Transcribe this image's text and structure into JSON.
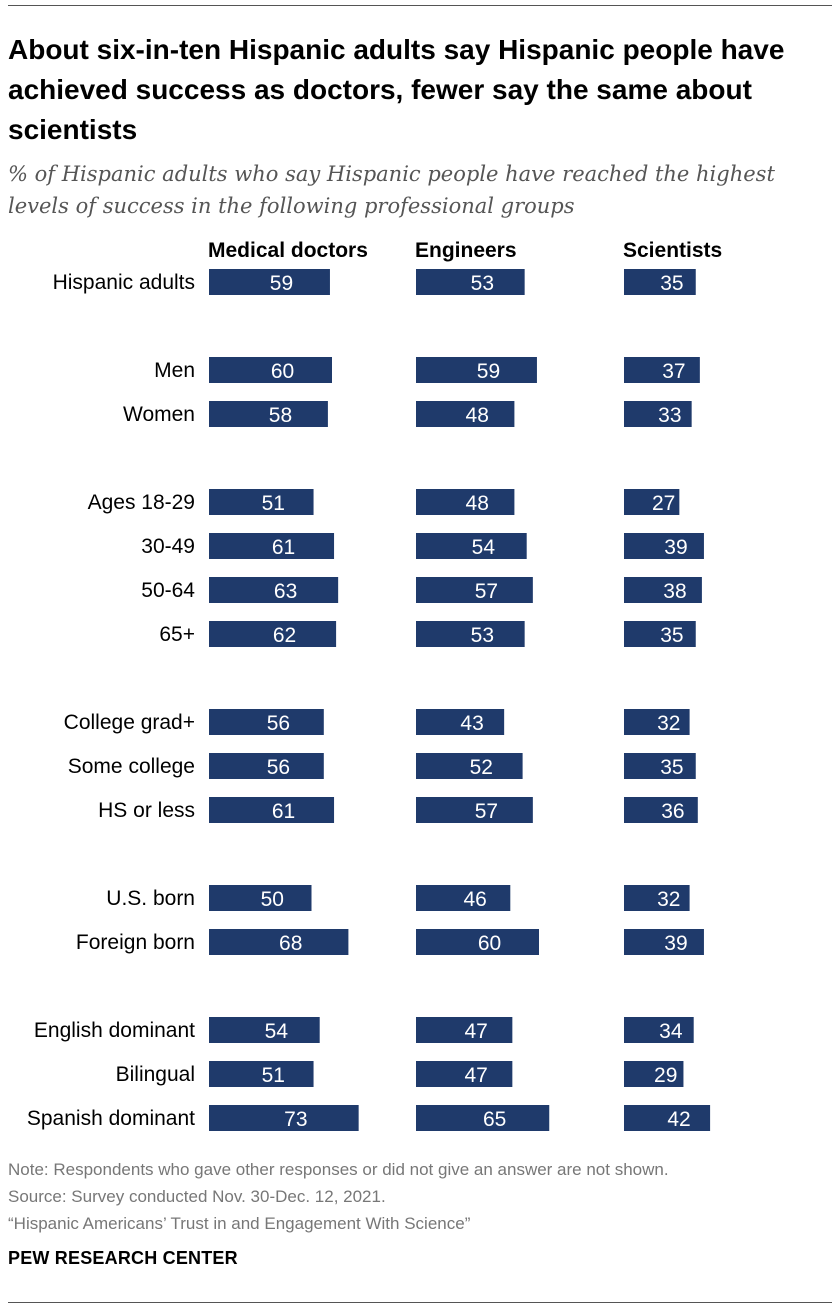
{
  "title": "About six-in-ten Hispanic adults say Hispanic people have achieved success as doctors, fewer say the same about scientists",
  "subtitle": "% of Hispanic adults who say Hispanic people have reached the highest levels of success in the following professional groups",
  "chart_data": {
    "type": "bar",
    "orientation": "horizontal",
    "columns": [
      "Medical doctors",
      "Engineers",
      "Scientists"
    ],
    "groups": [
      {
        "rows": [
          {
            "label": "Hispanic adults",
            "values": [
              59,
              53,
              35
            ]
          }
        ]
      },
      {
        "rows": [
          {
            "label": "Men",
            "values": [
              60,
              59,
              37
            ]
          },
          {
            "label": "Women",
            "values": [
              58,
              48,
              33
            ]
          }
        ]
      },
      {
        "rows": [
          {
            "label": "Ages 18-29",
            "values": [
              51,
              48,
              27
            ]
          },
          {
            "label": "30-49",
            "values": [
              61,
              54,
              39
            ]
          },
          {
            "label": "50-64",
            "values": [
              63,
              57,
              38
            ]
          },
          {
            "label": "65+",
            "values": [
              62,
              53,
              35
            ]
          }
        ]
      },
      {
        "rows": [
          {
            "label": "College grad+",
            "values": [
              56,
              43,
              32
            ]
          },
          {
            "label": "Some college",
            "values": [
              56,
              52,
              35
            ]
          },
          {
            "label": "HS or less",
            "values": [
              61,
              57,
              36
            ]
          }
        ]
      },
      {
        "rows": [
          {
            "label": "U.S. born",
            "values": [
              50,
              46,
              32
            ]
          },
          {
            "label": "Foreign born",
            "values": [
              68,
              60,
              39
            ]
          }
        ]
      },
      {
        "rows": [
          {
            "label": "English dominant",
            "values": [
              54,
              47,
              34
            ]
          },
          {
            "label": "Bilingual",
            "values": [
              51,
              47,
              29
            ]
          },
          {
            "label": "Spanish dominant",
            "values": [
              73,
              65,
              42
            ]
          }
        ]
      }
    ],
    "bar_color": "#1f3a6b",
    "value_label_color": "#ffffff"
  },
  "notes": {
    "note": "Note: Respondents who gave other responses or did not give an answer are not shown.",
    "source": "Source: Survey conducted Nov. 30-Dec. 12, 2021.",
    "report": "“Hispanic Americans’ Trust in and Engagement With Science”"
  },
  "brand": "PEW RESEARCH CENTER"
}
